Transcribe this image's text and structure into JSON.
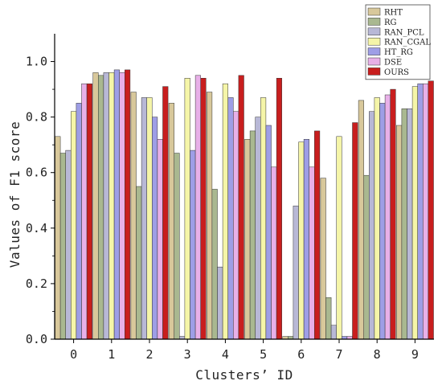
{
  "chart_data": {
    "type": "bar",
    "xlabel": "Clusters’ ID",
    "ylabel": "Values of F1 score",
    "categories": [
      "0",
      "1",
      "2",
      "3",
      "4",
      "5",
      "6",
      "7",
      "8",
      "9"
    ],
    "ylim": [
      0,
      1.1
    ],
    "yticks": [
      "0.0",
      "0.2",
      "0.4",
      "0.6",
      "0.8",
      "1.0"
    ],
    "legend_position": "top-right",
    "grid": false,
    "series": [
      {
        "name": "RHT",
        "color": "#d8c89b",
        "values": [
          0.73,
          0.96,
          0.89,
          0.85,
          0.89,
          0.72,
          0.01,
          0.58,
          0.86,
          0.77
        ]
      },
      {
        "name": "RG",
        "color": "#a9b890",
        "values": [
          0.67,
          0.95,
          0.55,
          0.67,
          0.54,
          0.75,
          0.01,
          0.15,
          0.59,
          0.83
        ]
      },
      {
        "name": "RAN_PCL",
        "color": "#b8b8d6",
        "values": [
          0.68,
          0.96,
          0.87,
          0.01,
          0.26,
          0.8,
          0.48,
          0.05,
          0.82,
          0.83
        ]
      },
      {
        "name": "RAN_CGAL",
        "color": "#f5f5a8",
        "values": [
          0.82,
          0.96,
          0.87,
          0.94,
          0.92,
          0.87,
          0.71,
          0.73,
          0.87,
          0.91
        ]
      },
      {
        "name": "HT_RG",
        "color": "#9e9ee6",
        "values": [
          0.85,
          0.97,
          0.8,
          0.68,
          0.87,
          0.77,
          0.72,
          0.01,
          0.85,
          0.92
        ]
      },
      {
        "name": "DSE",
        "color": "#e8b0e8",
        "values": [
          0.92,
          0.96,
          0.72,
          0.95,
          0.82,
          0.62,
          0.62,
          0.01,
          0.88,
          0.92
        ]
      },
      {
        "name": "OURS",
        "color": "#c81e1e",
        "values": [
          0.92,
          0.97,
          0.91,
          0.94,
          0.95,
          0.94,
          0.75,
          0.78,
          0.9,
          0.93
        ]
      }
    ]
  }
}
